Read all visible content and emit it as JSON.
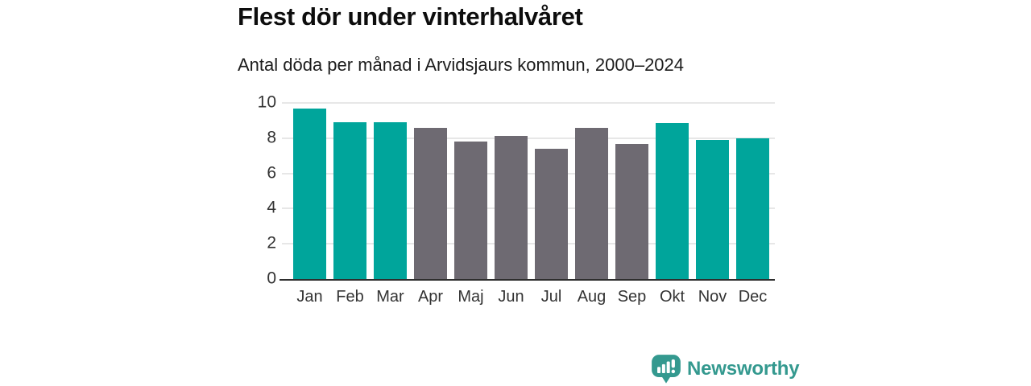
{
  "header": {
    "title": "Flest dör under vinterhalvåret",
    "subtitle": "Antal döda per månad i Arvidsjaurs kommun, 2000–2024"
  },
  "chart_data": {
    "type": "bar",
    "title": "Flest dör under vinterhalvåret",
    "subtitle": "Antal döda per månad i Arvidsjaurs kommun, 2000–2024",
    "categories": [
      "Jan",
      "Feb",
      "Mar",
      "Apr",
      "Maj",
      "Jun",
      "Jul",
      "Aug",
      "Sep",
      "Okt",
      "Nov",
      "Dec"
    ],
    "values": [
      9.7,
      8.9,
      8.9,
      8.6,
      7.8,
      8.15,
      7.4,
      8.6,
      7.65,
      8.85,
      7.9,
      8.0
    ],
    "bar_groups": [
      "winter",
      "winter",
      "winter",
      "summer",
      "summer",
      "summer",
      "summer",
      "summer",
      "summer",
      "winter",
      "winter",
      "winter"
    ],
    "xlabel": "",
    "ylabel": "",
    "ylim": [
      0,
      10
    ],
    "yticks": [
      0,
      2,
      4,
      6,
      8,
      10
    ],
    "grid": true,
    "legend": false,
    "colors": {
      "highlight_winter": "#00a59b",
      "muted_summer": "#6e6a72",
      "gridline": "#e7e7e7",
      "axis_line": "#2e2e2e",
      "tick_text": "#333333"
    }
  },
  "branding": {
    "logo_text": "Newsworthy",
    "logo_color": "#34998f",
    "logo_icon": "bar-chart-speech-bubble-icon"
  }
}
